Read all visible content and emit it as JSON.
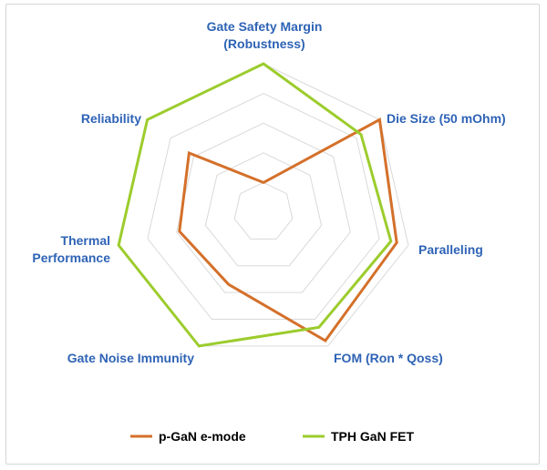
{
  "chart_data": {
    "type": "radar",
    "title": "",
    "axes": [
      {
        "lines": [
          "Gate Safety Margin",
          "(Robustness)"
        ]
      },
      {
        "lines": [
          "Die Size (50 mOhm)"
        ]
      },
      {
        "lines": [
          "Paralleling"
        ]
      },
      {
        "lines": [
          "FOM (Ron * Qoss)"
        ]
      },
      {
        "lines": [
          "Gate Noise Immunity"
        ]
      },
      {
        "lines": [
          "Thermal",
          "Performance"
        ]
      },
      {
        "lines": [
          "Reliability"
        ]
      }
    ],
    "rings": 5,
    "range": [
      0,
      5
    ],
    "grid": true,
    "legend_position": "bottom",
    "series": [
      {
        "name": "p-GaN e-mode",
        "color": "#d4702a",
        "values": [
          1,
          5,
          4.6,
          4.8,
          2.7,
          2.9,
          3.2
        ]
      },
      {
        "name": "TPH GaN FET",
        "color": "#9ccc2d",
        "values": [
          5,
          4.2,
          4.4,
          4.3,
          5,
          5,
          5
        ]
      }
    ]
  }
}
